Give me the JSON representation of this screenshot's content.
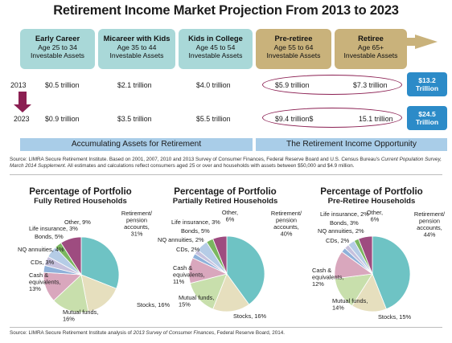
{
  "title": "Retirement Income Market Projection From 2013 to 2023",
  "stages": [
    {
      "name": "Early Career",
      "age": "Age 25 to 34",
      "assets": "Investable Assets"
    },
    {
      "name": "Micareer with Kids",
      "age": "Age 35 to 44",
      "assets": "Investable Assets"
    },
    {
      "name": "Kids in College",
      "age": "Age 45 to 54",
      "assets": "Investable Assets"
    },
    {
      "name": "Pre-retiree",
      "age": "Age 55 to 64",
      "assets": "Investable Assets"
    },
    {
      "name": "Retiree",
      "age": "Age 65+",
      "assets": "Investable Assets"
    }
  ],
  "years": {
    "start": "2013",
    "end": "2023"
  },
  "row_2013": [
    "$0.5 trillion",
    "$2.1 trillion",
    "$4.0 trillion",
    "$5.9 trillion",
    "$7.3 trillion"
  ],
  "row_2023": [
    "$0.9 trillion",
    "$3.5 trillion",
    "$5.5 trillion",
    "$9.4 trillion$",
    "15.1 trillion"
  ],
  "totals": {
    "t2013_line1": "$13.2",
    "t2013_line2": "Trillion",
    "t2023_line1": "$24.5",
    "t2023_line2": "Trillion"
  },
  "banners": {
    "left": "Accumulating Assets for Retirement",
    "right": "The Retirement Income Opportunity"
  },
  "source1": {
    "prefix": "Source: LIMRA Secure Retirement Institute. Based on 2001, 2007, 2010 and 2013 Survey of Consumer Finances, Federal Reserve Board and U.S. Census Bureau's ",
    "italic": "Current Population Survey, March 2014 Supplement.",
    "suffix": " All estimates and calculations reflect consumers aged 25 or over and households with assets between $50,000 and $4.9 million."
  },
  "source2": {
    "prefix": "Source: LIMRA Secure Retirement Institute analysis of ",
    "italic": "2013 Survey of Consumer Finances",
    "suffix": ", Federal Reserve Board, 2014."
  },
  "colors": {
    "retirement": "#6ec3c4",
    "stocks": "#e6dfbe",
    "mutual": "#c8dfac",
    "cash": "#d9a7bd",
    "cds": "#8fb1da",
    "nq": "#c6c1dd",
    "bonds": "#b5cce6",
    "life": "#7ab75f",
    "other": "#9e4c80"
  },
  "chart_data": [
    {
      "type": "pie",
      "title": "Percentage of Portfolio",
      "subtitle": "Fully Retired Households",
      "slices": [
        {
          "key": "retirement",
          "label": [
            "Retirement/",
            "pension",
            "accounts,",
            "31%"
          ],
          "value": 31
        },
        {
          "key": "stocks",
          "label": [
            "Stocks, 16%"
          ],
          "value": 16
        },
        {
          "key": "mutual",
          "label": [
            "Mutual funds,",
            "16%"
          ],
          "value": 16
        },
        {
          "key": "cash",
          "label": [
            "Cash &",
            "equivalents,",
            "13%"
          ],
          "value": 13
        },
        {
          "key": "cds",
          "label": [
            "CDs, 3%"
          ],
          "value": 3
        },
        {
          "key": "nq",
          "label": [
            "NQ annuities, 4%"
          ],
          "value": 4
        },
        {
          "key": "bonds",
          "label": [
            "Bonds, 5%"
          ],
          "value": 5
        },
        {
          "key": "life",
          "label": [
            "Life insurance, 3%"
          ],
          "value": 3
        },
        {
          "key": "other",
          "label": [
            "Other, 9%"
          ],
          "value": 9
        }
      ]
    },
    {
      "type": "pie",
      "title": "Percentage of Portfolio",
      "subtitle": "Partially Retired Households",
      "slices": [
        {
          "key": "retirement",
          "label": [
            "Retirement/",
            "pension",
            "accounts,",
            "40%"
          ],
          "value": 40
        },
        {
          "key": "stocks",
          "label": [
            "Stocks, 16%"
          ],
          "value": 16
        },
        {
          "key": "mutual",
          "label": [
            "Mutual funds,",
            "15%"
          ],
          "value": 15
        },
        {
          "key": "cash",
          "label": [
            "Cash &",
            "equivalents,",
            "11%"
          ],
          "value": 11
        },
        {
          "key": "cds",
          "label": [
            "CDs, 2%"
          ],
          "value": 2
        },
        {
          "key": "nq",
          "label": [
            "NQ annuities, 2%"
          ],
          "value": 2
        },
        {
          "key": "bonds",
          "label": [
            "Bonds, 5%"
          ],
          "value": 5
        },
        {
          "key": "life",
          "label": [
            "Life insurance, 3%"
          ],
          "value": 3
        },
        {
          "key": "other",
          "label": [
            "Other,",
            "6%"
          ],
          "value": 6
        }
      ]
    },
    {
      "type": "pie",
      "title": "Percentage of Portfolio",
      "subtitle": "Pre-Retiree Households",
      "slices": [
        {
          "key": "retirement",
          "label": [
            "Retirement/",
            "pension",
            "accounts,",
            "44%"
          ],
          "value": 44
        },
        {
          "key": "stocks",
          "label": [
            "Stocks, 15%"
          ],
          "value": 15
        },
        {
          "key": "mutual",
          "label": [
            "Mutual funds,",
            "14%"
          ],
          "value": 14
        },
        {
          "key": "cash",
          "label": [
            "Cash &",
            "equivalents,",
            "12%"
          ],
          "value": 12
        },
        {
          "key": "cds",
          "label": [
            "CDs, 2%"
          ],
          "value": 2
        },
        {
          "key": "nq",
          "label": [
            "NQ annuities, 2%"
          ],
          "value": 2
        },
        {
          "key": "bonds",
          "label": [
            "Bonds, 3%"
          ],
          "value": 3
        },
        {
          "key": "life",
          "label": [
            "Life insurance, 2%"
          ],
          "value": 2
        },
        {
          "key": "other",
          "label": [
            "Other,",
            "6%"
          ],
          "value": 6
        }
      ]
    }
  ]
}
